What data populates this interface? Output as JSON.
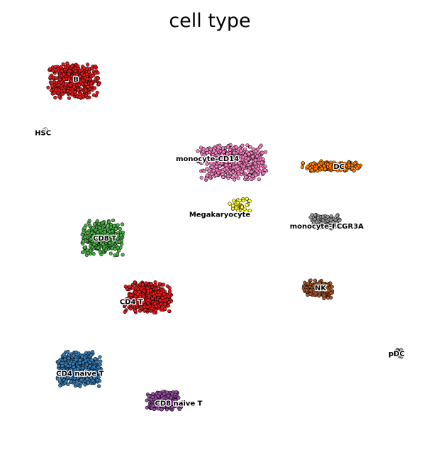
{
  "chart_data": {
    "type": "scatter",
    "title": "cell type",
    "xlabel": "",
    "ylabel": "",
    "grid": false,
    "legend": "on data",
    "xlim": [
      -10,
      10
    ],
    "ylim": [
      -10,
      10
    ],
    "series": [
      {
        "name": "B",
        "color": "#e41a1c",
        "center": [
          -7.1,
          7.9
        ],
        "spread": [
          1.2,
          0.85
        ],
        "count": 520
      },
      {
        "name": "HSC",
        "color": "#ffffff",
        "center": [
          -8.5,
          5.4
        ],
        "spread": [
          0.1,
          0.08
        ],
        "count": 4
      },
      {
        "name": "monocyte-CD14",
        "color": "#f781bf",
        "center": [
          0.6,
          3.8
        ],
        "spread": [
          1.6,
          0.85
        ],
        "count": 560
      },
      {
        "name": "DC",
        "color": "#ff7f00",
        "center": [
          5.4,
          3.6
        ],
        "spread": [
          1.4,
          0.25
        ],
        "count": 160
      },
      {
        "name": "Megakaryocyte",
        "color": "#ffff33",
        "center": [
          1.0,
          1.6
        ],
        "spread": [
          0.5,
          0.4
        ],
        "count": 40
      },
      {
        "name": "monocyte-FCGR3A",
        "color": "#999999",
        "center": [
          5.1,
          0.8
        ],
        "spread": [
          0.7,
          0.35
        ],
        "count": 150
      },
      {
        "name": "CD8 T",
        "color": "#4daf4a",
        "center": [
          -5.7,
          0.0
        ],
        "spread": [
          0.95,
          0.85
        ],
        "count": 380
      },
      {
        "name": "CD4 T",
        "color": "#e41a1c",
        "center": [
          -3.5,
          -3.0
        ],
        "spread": [
          1.1,
          0.75
        ],
        "count": 420
      },
      {
        "name": "NK",
        "color": "#a65628",
        "center": [
          4.8,
          -2.6
        ],
        "spread": [
          0.7,
          0.45
        ],
        "count": 150
      },
      {
        "name": "pDC",
        "color": "#999999",
        "center": [
          8.7,
          -5.8
        ],
        "spread": [
          0.15,
          0.2
        ],
        "count": 18
      },
      {
        "name": "CD4 naive T",
        "color": "#377eb8",
        "center": [
          -6.8,
          -6.6
        ],
        "spread": [
          1.05,
          0.85
        ],
        "count": 500
      },
      {
        "name": "CD8 naive T",
        "color": "#984ea3",
        "center": [
          -2.7,
          -8.2
        ],
        "spread": [
          0.85,
          0.45
        ],
        "count": 260
      }
    ],
    "labels": [
      {
        "text": "B",
        "x": -7.0,
        "y": 8.0
      },
      {
        "text": "HSC",
        "x": -8.6,
        "y": 5.3
      },
      {
        "text": "monocyte-CD14",
        "x": -0.6,
        "y": 4.0
      },
      {
        "text": "DC",
        "x": 5.8,
        "y": 3.6
      },
      {
        "text": "Megakaryocyte",
        "x": 0.0,
        "y": 1.2
      },
      {
        "text": "monocyte-FCGR3A",
        "x": 5.2,
        "y": 0.6
      },
      {
        "text": "CD8 T",
        "x": -5.6,
        "y": 0.0
      },
      {
        "text": "CD4 T",
        "x": -4.3,
        "y": -3.2
      },
      {
        "text": "NK",
        "x": 4.9,
        "y": -2.5
      },
      {
        "text": "pDC",
        "x": 8.6,
        "y": -5.8
      },
      {
        "text": "CD4 naive T",
        "x": -6.8,
        "y": -6.8
      },
      {
        "text": "CD8 naive T",
        "x": -2.0,
        "y": -8.3
      }
    ]
  }
}
